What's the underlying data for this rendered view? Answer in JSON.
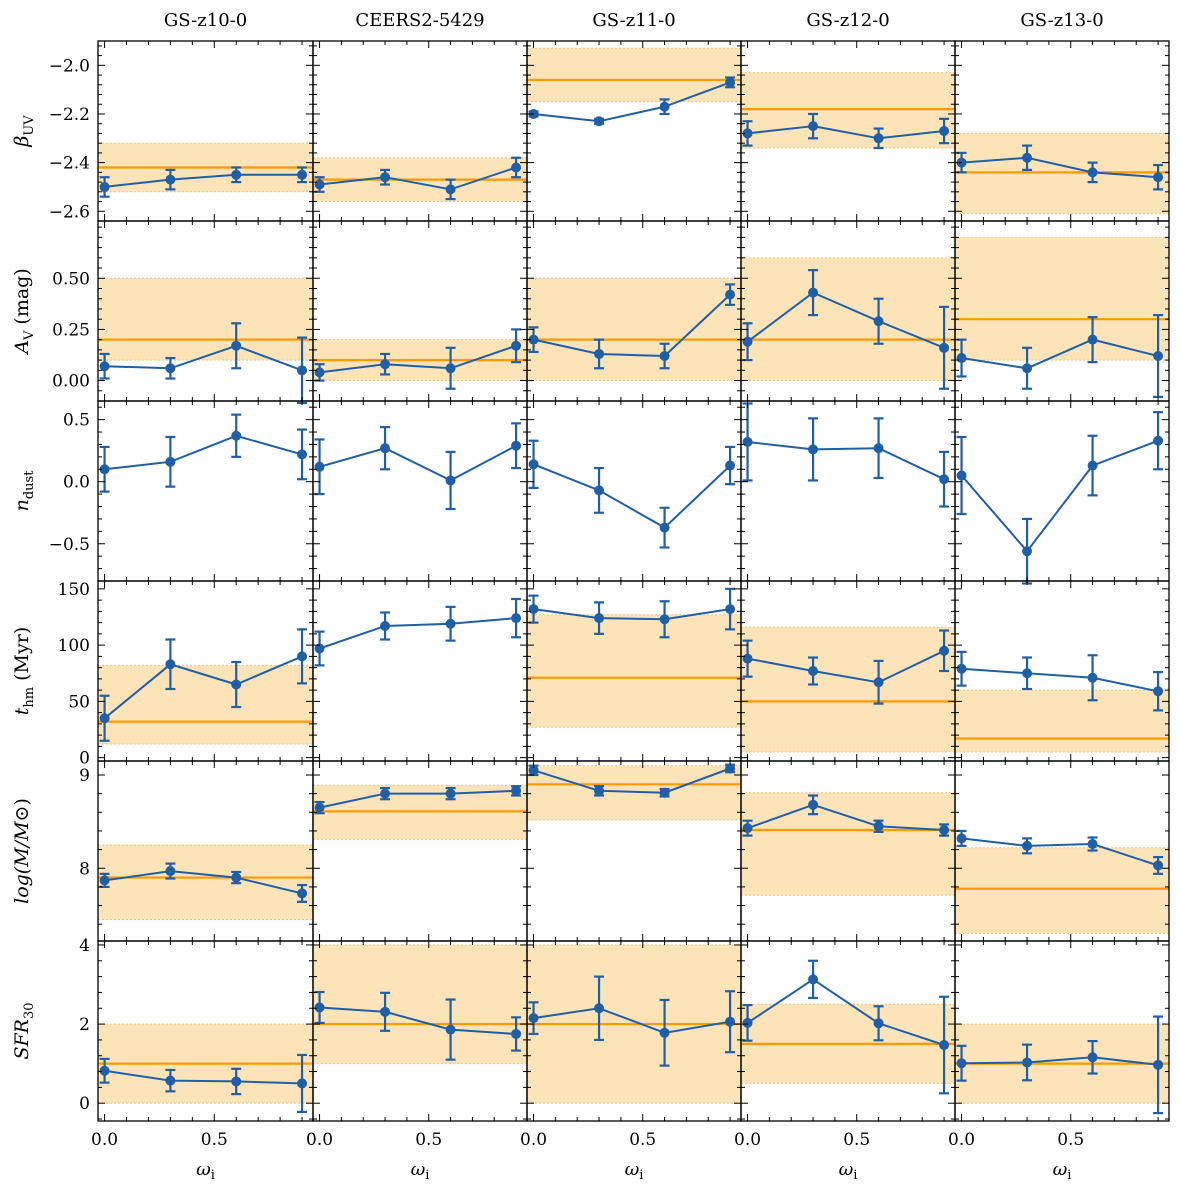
{
  "chart_data": {
    "type": "line",
    "x": [
      0.0,
      0.3,
      0.6,
      0.9
    ],
    "xlabel": "ω",
    "xlabel_sub": "i",
    "xlim": [
      -0.03,
      0.95
    ],
    "xticks": [
      0.0,
      0.5
    ],
    "xtick_labels": [
      "0.0",
      "0.5"
    ],
    "series_color": "#1f5fa8",
    "reference_color": "#ff9900",
    "band_color": "#fde3b8",
    "columns": [
      "GS-z10-0",
      "CEERS2-5429",
      "GS-z11-0",
      "GS-z12-0",
      "GS-z13-0"
    ],
    "rows": [
      {
        "label": "β",
        "label_sub": "UV",
        "ylim": [
          -2.64,
          -1.9
        ],
        "yticks": [
          -2.6,
          -2.4,
          -2.2,
          -2.0
        ],
        "ytick_labels": [
          "−2.6",
          "−2.4",
          "−2.2",
          "−2.0"
        ],
        "panels": [
          {
            "values": [
              -2.5,
              -2.47,
              -2.45,
              -2.45
            ],
            "errors": [
              0.04,
              0.04,
              0.03,
              0.03
            ],
            "ref": -2.42,
            "band": [
              -2.52,
              -2.32
            ]
          },
          {
            "values": [
              -2.49,
              -2.46,
              -2.51,
              -2.42
            ],
            "errors": [
              0.03,
              0.03,
              0.04,
              0.04
            ],
            "ref": -2.47,
            "band": [
              -2.56,
              -2.38
            ]
          },
          {
            "values": [
              -2.2,
              -2.23,
              -2.17,
              -2.07
            ],
            "errors": [
              0.01,
              0.01,
              0.03,
              0.02
            ],
            "ref": -2.06,
            "band": [
              -2.15,
              -1.93
            ]
          },
          {
            "values": [
              -2.28,
              -2.25,
              -2.3,
              -2.27
            ],
            "errors": [
              0.05,
              0.05,
              0.04,
              0.05
            ],
            "ref": -2.18,
            "band": [
              -2.34,
              -2.03
            ]
          },
          {
            "values": [
              -2.4,
              -2.38,
              -2.44,
              -2.46
            ],
            "errors": [
              0.04,
              0.05,
              0.04,
              0.05
            ],
            "ref": -2.44,
            "band": [
              -2.61,
              -2.28
            ]
          }
        ]
      },
      {
        "label": "A",
        "label_sub": "V",
        "label_suffix": " (mag)",
        "ylim": [
          -0.1,
          0.78
        ],
        "yticks": [
          0.0,
          0.25,
          0.5
        ],
        "ytick_labels": [
          "0.00",
          "0.25",
          "0.50"
        ],
        "panels": [
          {
            "values": [
              0.07,
              0.06,
              0.17,
              0.05
            ],
            "errors": [
              0.06,
              0.05,
              0.11,
              0.16
            ],
            "ref": 0.2,
            "band": [
              0.1,
              0.5
            ]
          },
          {
            "values": [
              0.04,
              0.08,
              0.06,
              0.17
            ],
            "errors": [
              0.04,
              0.05,
              0.1,
              0.08
            ],
            "ref": 0.1,
            "band": [
              0.0,
              0.2
            ]
          },
          {
            "values": [
              0.2,
              0.13,
              0.12,
              0.42
            ],
            "errors": [
              0.06,
              0.07,
              0.06,
              0.05
            ],
            "ref": 0.2,
            "band": [
              0.0,
              0.5
            ]
          },
          {
            "values": [
              0.19,
              0.43,
              0.29,
              0.16
            ],
            "errors": [
              0.09,
              0.11,
              0.11,
              0.2
            ],
            "ref": 0.2,
            "band": [
              0.0,
              0.6
            ]
          },
          {
            "values": [
              0.11,
              0.06,
              0.2,
              0.12
            ],
            "errors": [
              0.09,
              0.1,
              0.11,
              0.2
            ],
            "ref": 0.3,
            "band": [
              0.1,
              0.7
            ]
          }
        ]
      },
      {
        "label": "n",
        "label_sub": "dust",
        "ylim": [
          -0.8,
          0.65
        ],
        "yticks": [
          -0.5,
          0.0,
          0.5
        ],
        "ytick_labels": [
          "−0.5",
          "0.0",
          "0.5"
        ],
        "panels": [
          {
            "values": [
              0.1,
              0.16,
              0.37,
              0.22
            ],
            "errors": [
              0.18,
              0.2,
              0.17,
              0.2
            ],
            "ref": null,
            "band": null
          },
          {
            "values": [
              0.12,
              0.27,
              0.01,
              0.29
            ],
            "errors": [
              0.22,
              0.17,
              0.23,
              0.18
            ],
            "ref": null,
            "band": null
          },
          {
            "values": [
              0.14,
              -0.07,
              -0.37,
              0.13
            ],
            "errors": [
              0.19,
              0.18,
              0.16,
              0.15
            ],
            "ref": null,
            "band": null
          },
          {
            "values": [
              0.32,
              0.26,
              0.27,
              0.02
            ],
            "errors": [
              0.31,
              0.25,
              0.24,
              0.22
            ],
            "ref": null,
            "band": null
          },
          {
            "values": [
              0.05,
              -0.56,
              0.13,
              0.33
            ],
            "errors": [
              0.31,
              0.26,
              0.24,
              0.23
            ],
            "ref": null,
            "band": null
          }
        ]
      },
      {
        "label": "t",
        "label_sub": "hm",
        "label_suffix": " (Myr)",
        "ylim": [
          -3,
          157
        ],
        "yticks": [
          0,
          50,
          100,
          150
        ],
        "ytick_labels": [
          "0",
          "50",
          "100",
          "150"
        ],
        "panels": [
          {
            "values": [
              35,
              83,
              65,
              90
            ],
            "errors": [
              20,
              22,
              20,
              24
            ],
            "ref": 32,
            "band": [
              12,
              82
            ]
          },
          {
            "values": [
              97,
              117,
              119,
              124
            ],
            "errors": [
              15,
              12,
              15,
              17
            ],
            "ref": null,
            "band": null
          },
          {
            "values": [
              132,
              124,
              123,
              132
            ],
            "errors": [
              12,
              14,
              16,
              18
            ],
            "ref": 71,
            "band": [
              27,
              127
            ]
          },
          {
            "values": [
              88,
              77,
              67,
              95
            ],
            "errors": [
              16,
              12,
              19,
              18
            ],
            "ref": 50,
            "band": [
              5,
              116
            ]
          },
          {
            "values": [
              79,
              75,
              71,
              59
            ],
            "errors": [
              15,
              14,
              20,
              17
            ],
            "ref": 17,
            "band": [
              5,
              60
            ]
          }
        ]
      },
      {
        "label": "log(M/M",
        "label_suffix": "⊙)",
        "ylim": [
          7.22,
          9.15
        ],
        "yticks": [
          8,
          9
        ],
        "ytick_labels": [
          "8",
          "9"
        ],
        "panels": [
          {
            "values": [
              7.87,
              7.97,
              7.9,
              7.73
            ],
            "errors": [
              0.07,
              0.08,
              0.06,
              0.09
            ],
            "ref": 7.9,
            "band": [
              7.45,
              8.25
            ]
          },
          {
            "values": [
              8.65,
              8.8,
              8.8,
              8.83
            ],
            "errors": [
              0.06,
              0.06,
              0.06,
              0.05
            ],
            "ref": 8.61,
            "band": [
              8.31,
              8.89
            ]
          },
          {
            "values": [
              9.05,
              8.83,
              8.81,
              9.07
            ],
            "errors": [
              0.05,
              0.05,
              0.04,
              0.04
            ],
            "ref": 8.9,
            "band": [
              8.52,
              9.1
            ]
          },
          {
            "values": [
              8.43,
              8.68,
              8.45,
              8.41
            ],
            "errors": [
              0.08,
              0.1,
              0.06,
              0.06
            ],
            "ref": 8.41,
            "band": [
              7.71,
              8.81
            ]
          },
          {
            "values": [
              8.32,
              8.24,
              8.26,
              8.03
            ],
            "errors": [
              0.08,
              0.08,
              0.07,
              0.09
            ],
            "ref": 7.78,
            "band": [
              7.3,
              8.22
            ]
          }
        ]
      },
      {
        "label": "SFR",
        "label_sub": "30",
        "ylim": [
          -0.45,
          4.1
        ],
        "yticks": [
          0,
          2,
          4
        ],
        "ytick_labels": [
          "0",
          "2",
          "4"
        ],
        "panels": [
          {
            "values": [
              0.82,
              0.57,
              0.55,
              0.5
            ],
            "errors": [
              0.3,
              0.27,
              0.32,
              0.72
            ],
            "ref": 1.0,
            "band": [
              0.0,
              2.0
            ]
          },
          {
            "values": [
              2.42,
              2.31,
              1.86,
              1.75
            ],
            "errors": [
              0.39,
              0.48,
              0.76,
              0.42
            ],
            "ref": 2.0,
            "band": [
              1.0,
              4.0
            ]
          },
          {
            "values": [
              2.15,
              2.4,
              1.78,
              2.06
            ],
            "errors": [
              0.4,
              0.8,
              0.83,
              0.77
            ],
            "ref": 2.0,
            "band": [
              0.0,
              4.0
            ]
          },
          {
            "values": [
              2.03,
              3.13,
              2.02,
              1.47
            ],
            "errors": [
              0.45,
              0.47,
              0.43,
              1.22
            ],
            "ref": 1.5,
            "band": [
              0.5,
              2.5
            ]
          },
          {
            "values": [
              1.01,
              1.03,
              1.16,
              0.97
            ],
            "errors": [
              0.44,
              0.45,
              0.41,
              1.22
            ],
            "ref": 1.0,
            "band": [
              0.0,
              2.0
            ]
          }
        ]
      }
    ]
  }
}
